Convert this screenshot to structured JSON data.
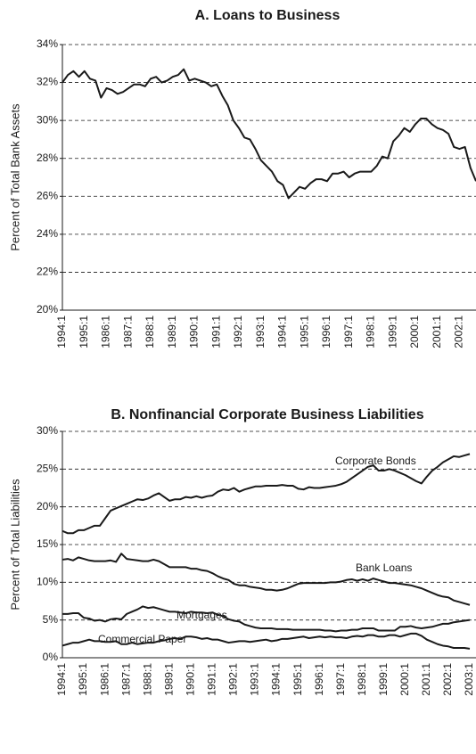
{
  "chart_data": [
    {
      "type": "line",
      "title": "A. Loans to Business",
      "y_label": "Percent of Total Bank Assets",
      "categories": [
        "1994:1",
        null,
        null,
        null,
        "1995:1",
        null,
        null,
        null,
        "1986:1",
        null,
        null,
        null,
        "1987:1",
        null,
        null,
        null,
        "1988:1",
        null,
        null,
        null,
        "1989:1",
        null,
        null,
        null,
        "1990:1",
        null,
        null,
        null,
        "1991:1",
        null,
        null,
        null,
        "1992:1",
        null,
        null,
        null,
        "1993:1",
        null,
        null,
        null,
        "1994:1",
        null,
        null,
        null,
        "1995:1",
        null,
        null,
        null,
        "1996:1",
        null,
        null,
        null,
        "1997:1",
        null,
        null,
        null,
        "1998:1",
        null,
        null,
        null,
        "1999:1",
        null,
        null,
        null,
        "2000:1",
        null,
        null,
        null,
        "2001:1",
        null,
        null,
        null,
        "2002:1",
        null,
        null,
        null
      ],
      "values": [
        32.0,
        32.4,
        32.6,
        32.3,
        32.6,
        32.2,
        32.1,
        31.2,
        31.7,
        31.6,
        31.4,
        31.5,
        31.7,
        31.9,
        31.9,
        31.8,
        32.2,
        32.3,
        32.0,
        32.1,
        32.3,
        32.4,
        32.7,
        32.1,
        32.2,
        32.1,
        32.0,
        31.8,
        31.9,
        31.3,
        30.8,
        30.0,
        29.6,
        29.1,
        29.0,
        28.5,
        27.9,
        27.6,
        27.3,
        26.8,
        26.6,
        25.9,
        26.2,
        26.5,
        26.4,
        26.7,
        26.9,
        26.9,
        26.8,
        27.2,
        27.2,
        27.3,
        27.0,
        27.2,
        27.3,
        27.3,
        27.3,
        27.6,
        28.1,
        28.0,
        28.9,
        29.2,
        29.6,
        29.4,
        29.8,
        30.1,
        30.1,
        29.8,
        29.6,
        29.5,
        29.3,
        28.6,
        28.5,
        28.6,
        27.5,
        26.8
      ],
      "color": "#1a1a1a",
      "ylim": [
        20,
        34
      ],
      "yticks": [
        {
          "value": 20,
          "label": "20%"
        },
        {
          "value": 22,
          "label": "22%"
        },
        {
          "value": 24,
          "label": "24%"
        },
        {
          "value": 26,
          "label": "26%"
        },
        {
          "value": 28,
          "label": "28%"
        },
        {
          "value": 30,
          "label": "30%"
        },
        {
          "value": 32,
          "label": "32%"
        },
        {
          "value": 34,
          "label": "34%"
        }
      ],
      "grid": true
    },
    {
      "type": "line",
      "title": "B. Nonfinancial Corporate Business Liabilities",
      "y_label": "Percent of Total Liabilities",
      "categories": [
        "1994:1",
        null,
        null,
        null,
        "1995:1",
        null,
        null,
        null,
        "1986:1",
        null,
        null,
        null,
        "1987:1",
        null,
        null,
        null,
        "1988:1",
        null,
        null,
        null,
        "1989:1",
        null,
        null,
        null,
        "1990:1",
        null,
        null,
        null,
        "1991:1",
        null,
        null,
        null,
        "1992:1",
        null,
        null,
        null,
        "1993:1",
        null,
        null,
        null,
        "1994:1",
        null,
        null,
        null,
        "1995:1",
        null,
        null,
        null,
        "1996:1",
        null,
        null,
        null,
        "1997:1",
        null,
        null,
        null,
        "1998:1",
        null,
        null,
        null,
        "1999:1",
        null,
        null,
        null,
        "2000:1",
        null,
        null,
        null,
        "2001:1",
        null,
        null,
        null,
        "2002:1",
        null,
        null,
        null,
        "2003:1"
      ],
      "series": [
        {
          "name": "Corporate Bonds",
          "color": "#1a1a1a",
          "values": [
            16.8,
            16.5,
            16.5,
            16.9,
            16.9,
            17.2,
            17.5,
            17.5,
            18.5,
            19.5,
            19.8,
            20.1,
            20.4,
            20.7,
            21.0,
            20.9,
            21.1,
            21.5,
            21.8,
            21.3,
            20.8,
            21.0,
            21.0,
            21.3,
            21.2,
            21.4,
            21.2,
            21.4,
            21.5,
            22.0,
            22.3,
            22.2,
            22.5,
            22.0,
            22.3,
            22.5,
            22.7,
            22.7,
            22.8,
            22.8,
            22.8,
            22.9,
            22.8,
            22.8,
            22.4,
            22.3,
            22.6,
            22.5,
            22.5,
            22.6,
            22.7,
            22.8,
            23.0,
            23.3,
            23.8,
            24.3,
            24.8,
            25.3,
            25.5,
            24.8,
            24.8,
            25.0,
            24.8,
            24.5,
            24.2,
            23.8,
            23.4,
            23.1,
            24.0,
            24.8,
            25.3,
            25.9,
            26.3,
            26.7,
            26.6,
            26.8,
            27.0
          ]
        },
        {
          "name": "Bank Loans",
          "color": "#1a1a1a",
          "values": [
            13.0,
            13.1,
            12.9,
            13.3,
            13.1,
            12.9,
            12.8,
            12.8,
            12.8,
            12.9,
            12.7,
            13.8,
            13.1,
            13.0,
            12.9,
            12.8,
            12.8,
            13.0,
            12.8,
            12.4,
            12.0,
            12.0,
            12.0,
            12.0,
            11.8,
            11.8,
            11.6,
            11.5,
            11.2,
            10.8,
            10.5,
            10.3,
            9.8,
            9.6,
            9.6,
            9.4,
            9.3,
            9.2,
            9.0,
            9.0,
            8.9,
            9.0,
            9.2,
            9.5,
            9.8,
            9.9,
            9.9,
            9.9,
            9.9,
            9.9,
            10.0,
            10.0,
            10.1,
            10.3,
            10.4,
            10.2,
            10.4,
            10.2,
            10.5,
            10.3,
            10.1,
            9.9,
            9.9,
            9.8,
            9.7,
            9.6,
            9.4,
            9.2,
            8.9,
            8.6,
            8.3,
            8.1,
            8.0,
            7.6,
            7.4,
            7.2,
            7.0
          ]
        },
        {
          "name": "Mortgages",
          "color": "#1a1a1a",
          "values": [
            5.8,
            5.8,
            5.9,
            5.9,
            5.3,
            5.2,
            4.9,
            5.0,
            4.8,
            5.1,
            5.2,
            5.1,
            5.8,
            6.1,
            6.4,
            6.8,
            6.6,
            6.7,
            6.5,
            6.3,
            6.1,
            6.1,
            6.0,
            5.9,
            6.1,
            6.0,
            6.0,
            5.9,
            6.0,
            5.7,
            5.5,
            5.1,
            4.9,
            4.8,
            4.4,
            4.2,
            4.0,
            3.9,
            3.9,
            3.9,
            3.8,
            3.8,
            3.8,
            3.7,
            3.7,
            3.7,
            3.7,
            3.7,
            3.7,
            3.6,
            3.6,
            3.5,
            3.6,
            3.6,
            3.7,
            3.7,
            3.9,
            3.9,
            3.9,
            3.6,
            3.6,
            3.6,
            3.6,
            4.1,
            4.1,
            4.2,
            4.0,
            3.9,
            4.0,
            4.1,
            4.3,
            4.5,
            4.5,
            4.7,
            4.8,
            4.9,
            5.0
          ]
        },
        {
          "name": "Commercial Paper",
          "color": "#1a1a1a",
          "values": [
            1.6,
            1.8,
            2.0,
            2.0,
            2.2,
            2.4,
            2.2,
            2.2,
            2.1,
            2.1,
            2.2,
            1.8,
            1.8,
            2.0,
            1.8,
            1.9,
            2.0,
            2.0,
            2.2,
            2.3,
            2.5,
            2.6,
            2.5,
            2.8,
            2.8,
            2.7,
            2.5,
            2.6,
            2.4,
            2.4,
            2.2,
            2.0,
            2.1,
            2.2,
            2.2,
            2.1,
            2.2,
            2.3,
            2.4,
            2.2,
            2.3,
            2.5,
            2.5,
            2.6,
            2.7,
            2.8,
            2.6,
            2.7,
            2.8,
            2.7,
            2.8,
            2.7,
            2.7,
            2.6,
            2.8,
            2.9,
            2.8,
            3.0,
            3.0,
            2.8,
            2.8,
            3.0,
            3.0,
            2.8,
            3.0,
            3.2,
            3.2,
            2.9,
            2.4,
            2.1,
            1.8,
            1.6,
            1.5,
            1.3,
            1.3,
            1.3,
            1.2
          ]
        }
      ],
      "ylim": [
        0,
        30
      ],
      "yticks": [
        {
          "value": 0,
          "label": "0%"
        },
        {
          "value": 5,
          "label": "5%"
        },
        {
          "value": 10,
          "label": "10%"
        },
        {
          "value": 15,
          "label": "15%"
        },
        {
          "value": 20,
          "label": "20%"
        },
        {
          "value": 25,
          "label": "25%"
        },
        {
          "value": 30,
          "label": "30%"
        }
      ],
      "grid": true
    }
  ]
}
